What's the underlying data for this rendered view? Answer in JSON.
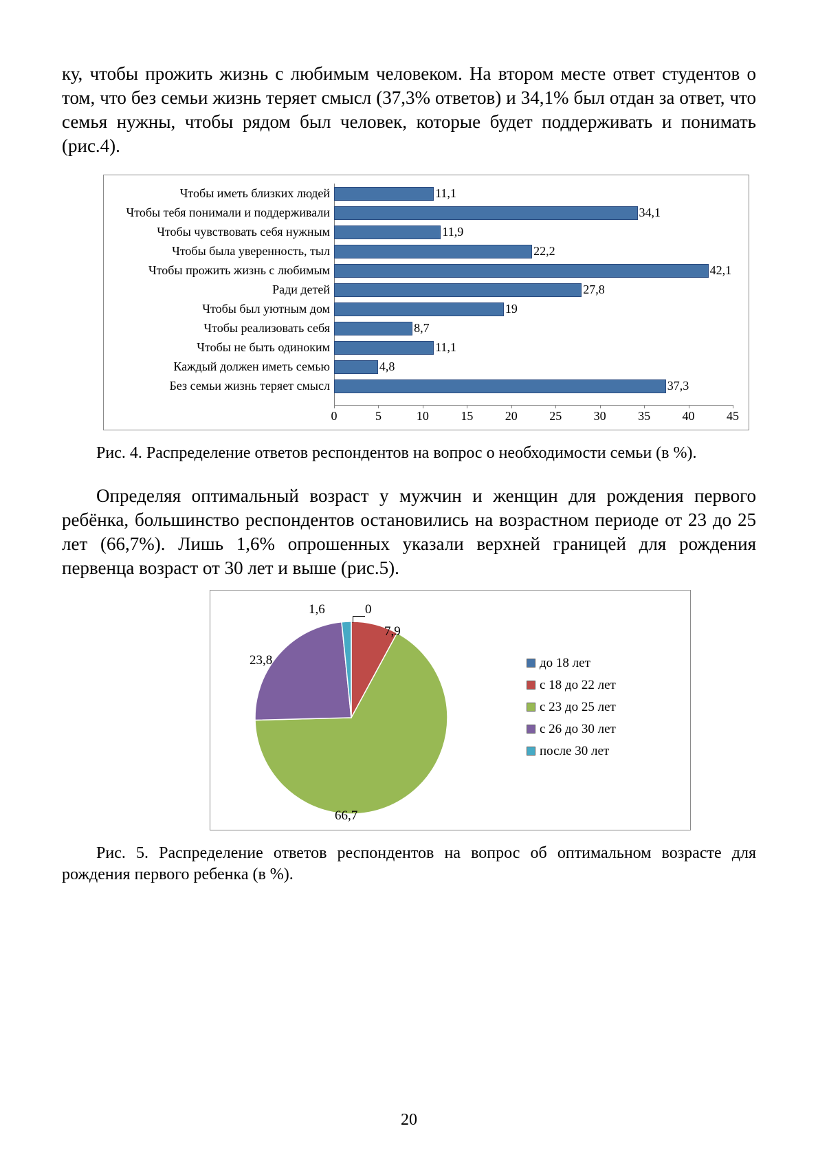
{
  "paragraphs": {
    "p1": "ку, чтобы прожить жизнь с любимым человеком. На втором месте ответ студентов о том, что без семьи жизнь теряет смысл (37,3% ответов) и 34,1% был отдан за ответ, что семья нужны, чтобы рядом был человек, которые будет поддерживать и понимать (рис.4).",
    "caption4": "Рис. 4.  Распределение ответов респондентов на вопрос о необходимости семьи (в %).",
    "p2": "Определяя оптимальный возраст у мужчин и женщин для рождения первого ребёнка, большинство респондентов остановились на возрастном периоде от 23 до 25 лет (66,7%). Лишь 1,6% опрошенных указали верхней границей для рождения первенца возраст от 30 лет и выше (рис.5).",
    "caption5": "Рис. 5. Распределение ответов респондентов на вопрос об оптимальном возрасте для рождения первого ребенка (в %).",
    "page_number": "20"
  },
  "bar_chart": {
    "type": "bar-horizontal",
    "bar_fill": "#4573a7",
    "bar_border": "#2a4a7f",
    "axis_color": "#808080",
    "label_fontsize": 18,
    "value_fontsize": 18,
    "xlim": [
      0,
      45
    ],
    "xtick_step": 5,
    "xticks": [
      "0",
      "5",
      "10",
      "15",
      "20",
      "25",
      "30",
      "35",
      "40",
      "45"
    ],
    "categories": [
      "Чтобы иметь близких людей",
      "Чтобы тебя понимали и поддерживали",
      "Чтобы чувствовать себя нужным",
      "Чтобы была уверенность, тыл",
      "Чтобы прожить жизнь с любимым",
      "Ради детей",
      "Чтобы был уютным дом",
      "Чтобы реализовать себя",
      "Чтобы не быть одиноким",
      "Каждый должен иметь семью",
      "Без семьи жизнь теряет смысл"
    ],
    "values": [
      11.1,
      34.1,
      11.9,
      22.2,
      42.1,
      27.8,
      19,
      8.7,
      11.1,
      4.8,
      37.3
    ],
    "value_labels": [
      "11,1",
      "34,1",
      "11,9",
      "22,2",
      "42,1",
      "27,8",
      "19",
      "8,7",
      "11,1",
      "4,8",
      "37,3"
    ]
  },
  "pie_chart": {
    "type": "pie",
    "background_color": "#ffffff",
    "border_color": "#8a8a8a",
    "label_fontsize": 19,
    "legend_fontsize": 19,
    "slices": [
      {
        "label": "до 18 лет",
        "value": 0,
        "value_label": "0",
        "color": "#4573a7"
      },
      {
        "label": "с 18 до 22 лет",
        "value": 7.9,
        "value_label": "7,9",
        "color": "#be4b48"
      },
      {
        "label": "с 23 до 25 лет",
        "value": 66.7,
        "value_label": "66,7",
        "color": "#98b954"
      },
      {
        "label": "с 26 до 30 лет",
        "value": 23.8,
        "value_label": "23,8",
        "color": "#7d60a0"
      },
      {
        "label": "после 30 лет",
        "value": 1.6,
        "value_label": "1,6",
        "color": "#46aac5"
      }
    ]
  }
}
